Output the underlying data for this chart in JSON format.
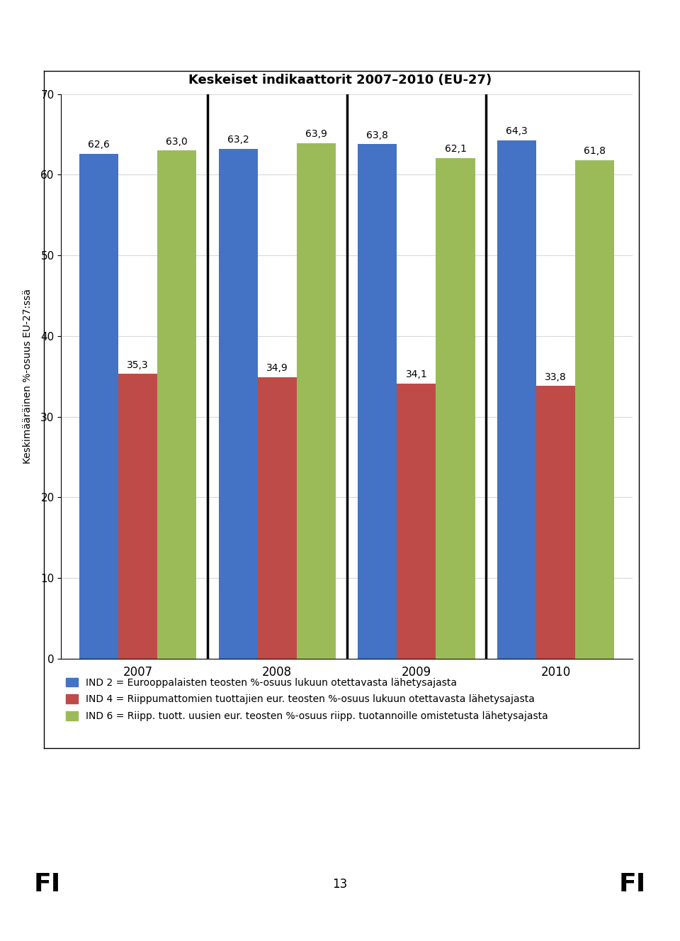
{
  "title": "Keskeiset indikaattorit 2007–2010 (EU-27)",
  "ylabel": "Keskimääräinen %-osuus EU-27:ssä",
  "years": [
    "2007",
    "2008",
    "2009",
    "2010"
  ],
  "series": {
    "IND2": [
      62.6,
      63.2,
      63.8,
      64.3
    ],
    "IND4": [
      35.3,
      34.9,
      34.1,
      33.8
    ],
    "IND6": [
      63.0,
      63.9,
      62.1,
      61.8
    ]
  },
  "colors": {
    "IND2": "#4472C4",
    "IND4": "#BE4B48",
    "IND6": "#9BBB59"
  },
  "legend_labels": {
    "IND2": "IND 2 = Eurooppalaisten teosten %-osuus lukuun otettavasta lähetysajasta",
    "IND4": "IND 4 = Riippumattomien tuottajien eur. teosten %-osuus lukuun otettavasta lähetysajasta",
    "IND6": "IND 6 = Riipp. tuott. uusien eur. teosten %-osuus riipp. tuotannoille omistetusta lähetysajasta"
  },
  "ylim": [
    0,
    70
  ],
  "yticks": [
    0,
    10,
    20,
    30,
    40,
    50,
    60,
    70
  ],
  "bar_width": 0.28,
  "title_fontsize": 13,
  "label_fontsize": 10,
  "tick_fontsize": 11,
  "legend_fontsize": 10,
  "value_fontsize": 10,
  "background_color": "#FFFFFF",
  "plot_bg_color": "#FFFFFF",
  "grid_color": "#D9D9D9",
  "footer_left": "FI",
  "footer_right": "FI",
  "footer_center": "13",
  "separator_color": "#000000",
  "separator_linewidth": 2.5
}
